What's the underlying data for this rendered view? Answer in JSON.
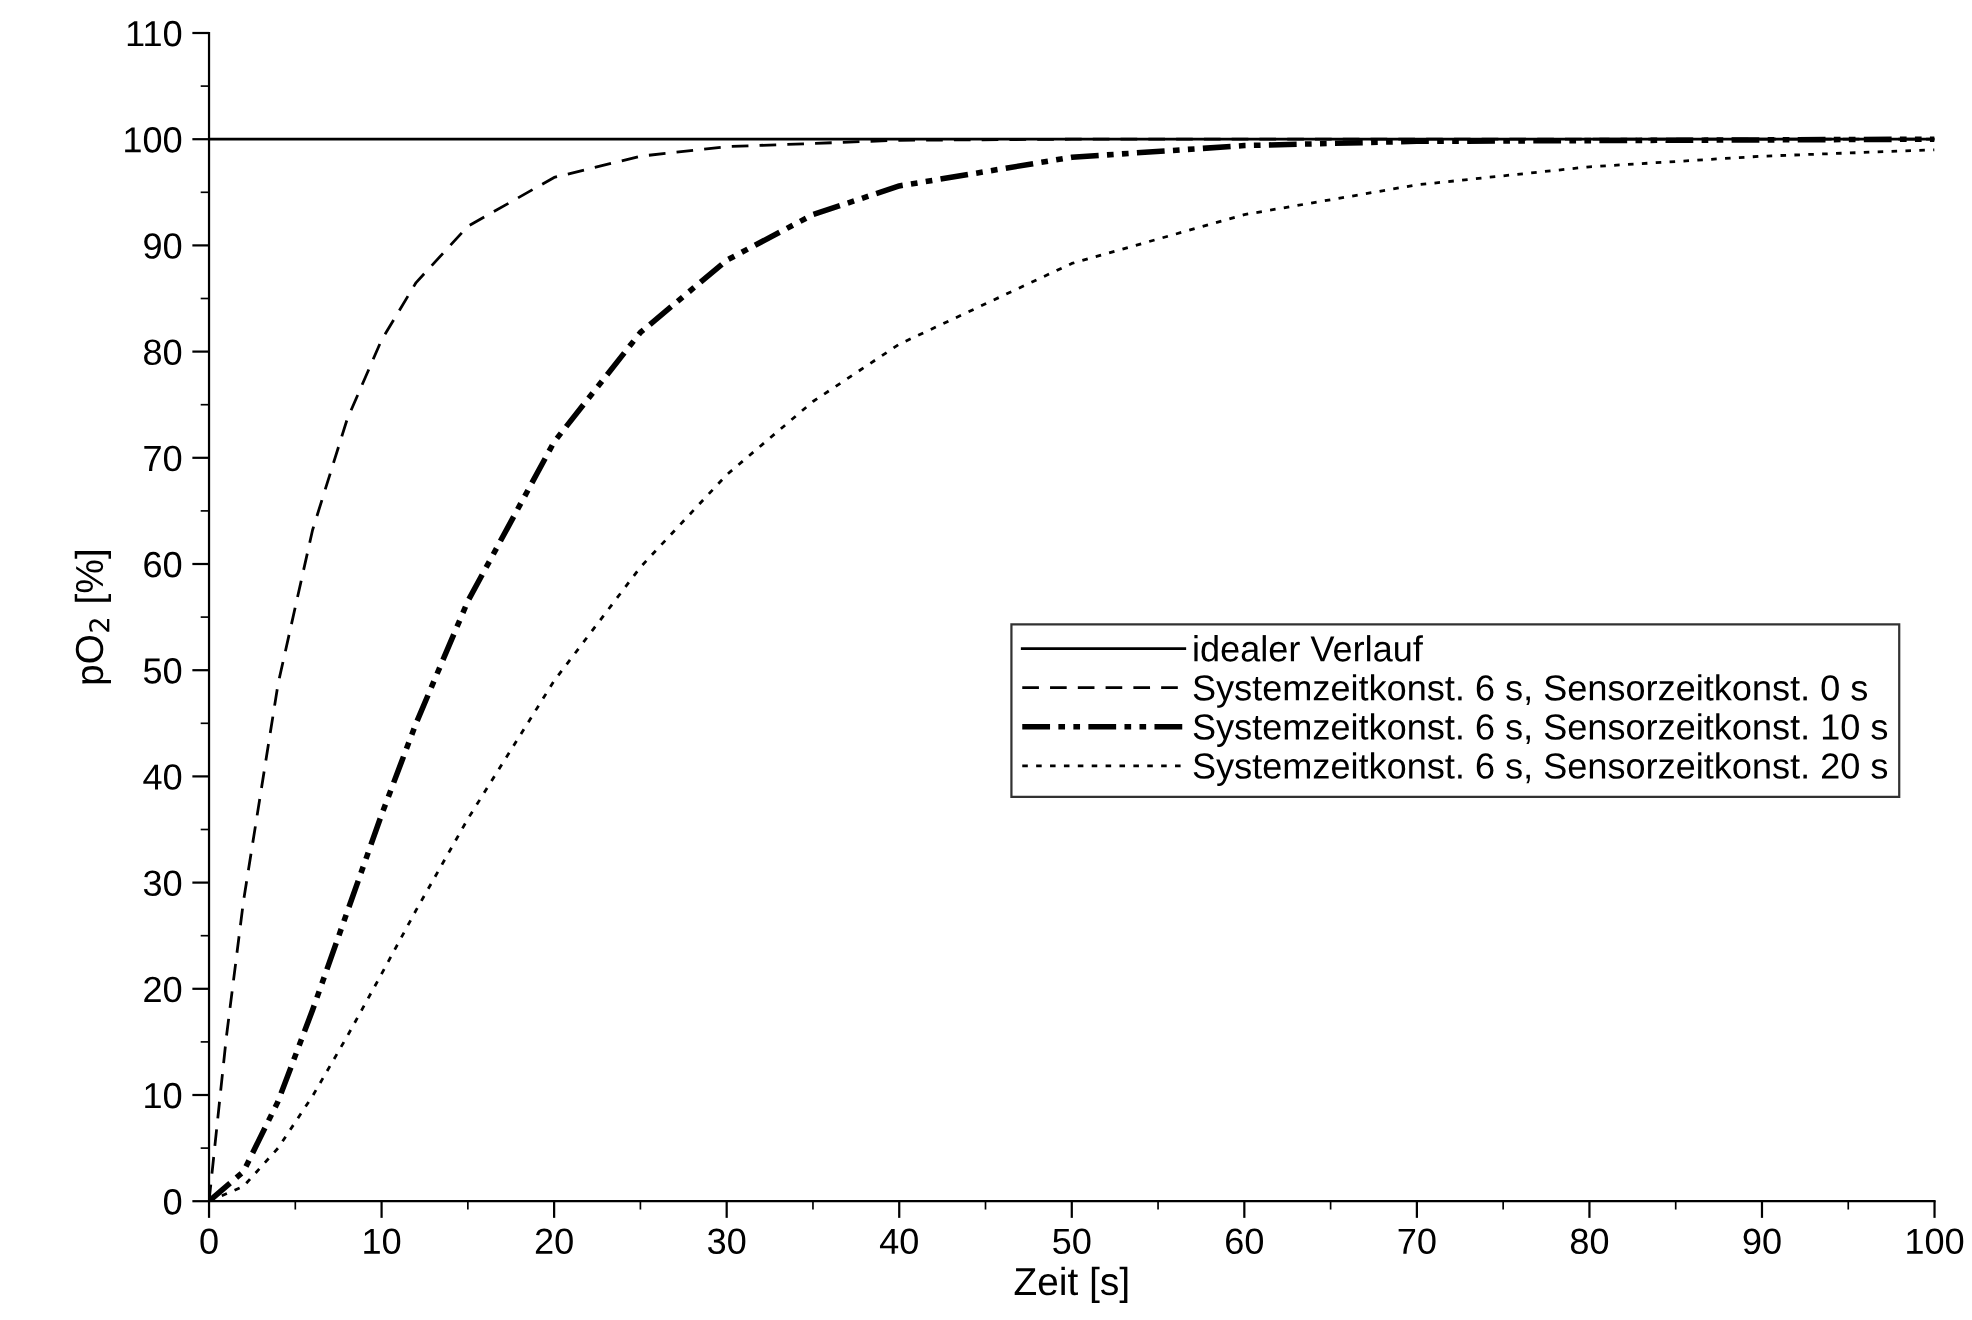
{
  "chart_data": {
    "type": "line",
    "xlabel": "Zeit [s]",
    "ylabel": "pO$_{2}$ [%]",
    "xlim": [
      0,
      100
    ],
    "ylim": [
      0,
      110
    ],
    "xticks": [
      0,
      {
        "value": 5,
        "label": null
      },
      10,
      {
        "value": 15,
        "label": null
      },
      20,
      {
        "value": 25,
        "label": null
      },
      30,
      {
        "value": 35,
        "label": null
      },
      40,
      {
        "value": 45,
        "label": null
      },
      50,
      {
        "value": 55,
        "label": null
      },
      60,
      {
        "value": 65,
        "label": null
      },
      70,
      {
        "value": 75,
        "label": null
      },
      80,
      {
        "value": 85,
        "label": null
      },
      90,
      {
        "value": 95,
        "label": null
      },
      100
    ],
    "yticks": [
      0,
      {
        "value": 5,
        "label": null
      },
      10,
      {
        "value": 15,
        "label": null
      },
      20,
      {
        "value": 25,
        "label": null
      },
      30,
      {
        "value": 35,
        "label": null
      },
      40,
      {
        "value": 45,
        "label": null
      },
      50,
      {
        "value": 55,
        "label": null
      },
      60,
      {
        "value": 65,
        "label": null
      },
      70,
      {
        "value": 75,
        "label": null
      },
      80,
      {
        "value": 85,
        "label": null
      },
      90,
      {
        "value": 95,
        "label": null
      },
      100,
      {
        "value": 105,
        "label": null
      },
      110
    ],
    "grid": false,
    "legend": "right",
    "marker": "none",
    "series": [
      {
        "name": "idealer Verlauf",
        "color": "#000000",
        "line_style": "solid",
        "x": [
          0,
          100
        ],
        "values": [
          100,
          100
        ]
      },
      {
        "name": "Systemzeitkonst. 6 s, Sensorzeitkonst. 0 s",
        "color": "#000000",
        "line_style": "dashed",
        "x": [
          0,
          1,
          2,
          4,
          6,
          8,
          10,
          12,
          15,
          20,
          25,
          30,
          40,
          50,
          100
        ],
        "values": [
          0,
          15.4,
          28.3,
          48.7,
          63.2,
          73.6,
          81.1,
          86.5,
          91.8,
          96.4,
          98.4,
          99.3,
          99.9,
          100,
          100
        ]
      },
      {
        "name": "Systemzeitkonst. 6 s, Sensorzeitkonst. 10 s",
        "color": "#000000",
        "line_style": "dashdot",
        "x": [
          0,
          2,
          4,
          6,
          8,
          10,
          12,
          15,
          20,
          25,
          30,
          35,
          40,
          50,
          60,
          70,
          100
        ],
        "values": [
          0,
          2.8,
          9.4,
          18.0,
          27.2,
          36.4,
          45.0,
          56.5,
          71.5,
          81.8,
          88.6,
          92.9,
          95.6,
          98.3,
          99.4,
          99.8,
          100
        ]
      },
      {
        "name": "Systemzeitkonst. 6 s, Sensorzeitkonst. 20 s",
        "color": "#000000",
        "line_style": "dotted",
        "x": [
          0,
          2,
          4,
          6,
          8,
          10,
          12,
          15,
          20,
          25,
          30,
          35,
          40,
          50,
          60,
          70,
          80,
          90,
          100
        ],
        "values": [
          0,
          1.4,
          5.0,
          9.9,
          15.5,
          21.4,
          27.4,
          36.0,
          49.0,
          59.7,
          68.4,
          75.3,
          80.7,
          88.3,
          92.9,
          95.7,
          97.4,
          98.4,
          99.0
        ]
      }
    ]
  }
}
